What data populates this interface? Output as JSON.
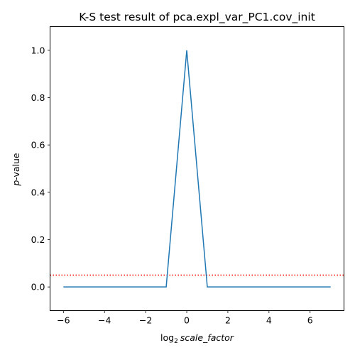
{
  "chart_data": {
    "type": "line",
    "title": "K-S test result of pca.expl_var_PC1.cov_init",
    "xlabel": {
      "prefix": "log",
      "subscript": "2",
      "italic": "scale_factor"
    },
    "ylabel": {
      "italic": "p",
      "rest": "-value"
    },
    "xlim": [
      -6.65,
      7.65
    ],
    "ylim": [
      -0.1,
      1.1
    ],
    "x_ticks": [
      -6,
      -4,
      -2,
      0,
      2,
      4,
      6
    ],
    "x_tick_labels": [
      "−6",
      "−4",
      "−2",
      "0",
      "2",
      "4",
      "6"
    ],
    "y_ticks": [
      0.0,
      0.2,
      0.4,
      0.6,
      0.8,
      1.0
    ],
    "y_tick_labels": [
      "0.0",
      "0.2",
      "0.4",
      "0.6",
      "0.8",
      "1.0"
    ],
    "series": [
      {
        "color": "#1f77b4",
        "x": [
          -6,
          -5,
          -4,
          -3,
          -2,
          -1,
          0,
          1,
          2,
          3,
          4,
          5,
          6,
          7
        ],
        "y": [
          0,
          0,
          0,
          0,
          0,
          0,
          1.0,
          0,
          0,
          0,
          0,
          0,
          0,
          0
        ]
      }
    ],
    "reference_line": {
      "y": 0.05,
      "color": "#ff0000",
      "style": "dotted"
    },
    "grid": false,
    "legend": "none"
  }
}
